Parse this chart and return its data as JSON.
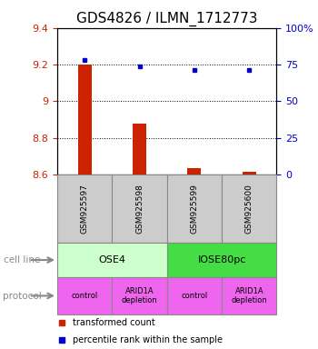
{
  "title": "GDS4826 / ILMN_1712773",
  "samples": [
    "GSM925597",
    "GSM925598",
    "GSM925599",
    "GSM925600"
  ],
  "bar_values": [
    9.2,
    8.88,
    8.635,
    8.615
  ],
  "bar_base": 8.6,
  "percentile_values": [
    78,
    73.5,
    71.5,
    71.5
  ],
  "ylim": [
    8.6,
    9.4
  ],
  "yticks": [
    8.6,
    8.8,
    9.0,
    9.2,
    9.4
  ],
  "ytick_labels_left": [
    "8.6",
    "8.8",
    "9",
    "9.2",
    "9.4"
  ],
  "ytick_labels_right": [
    "0",
    "25",
    "50",
    "75",
    "100%"
  ],
  "bar_color": "#cc2200",
  "dot_color": "#0000cc",
  "bar_width": 0.25,
  "cell_line_labels": [
    "OSE4",
    "IOSE80pc"
  ],
  "cell_line_colors": [
    "#ccffcc",
    "#44dd44"
  ],
  "protocol_labels": [
    "control",
    "ARID1A\ndepletion",
    "control",
    "ARID1A\ndepletion"
  ],
  "protocol_color": "#ee66ee",
  "sample_box_color": "#cccccc",
  "legend_red_label": "transformed count",
  "legend_blue_label": "percentile rank within the sample",
  "title_fontsize": 11,
  "axis_label_color_left": "#cc2200",
  "axis_label_color_right": "#0000cc"
}
